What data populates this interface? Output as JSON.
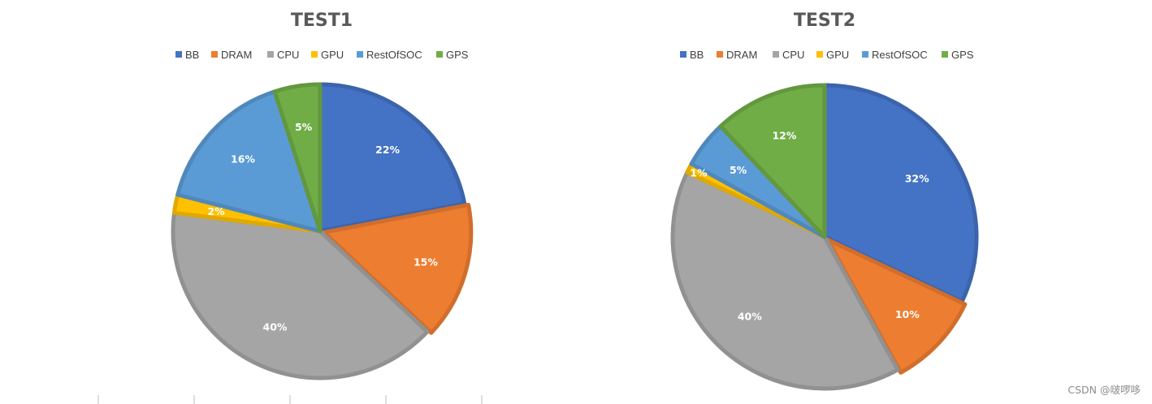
{
  "chart_data": [
    {
      "type": "pie",
      "title": "TEST1",
      "legend_position": "top",
      "series": [
        {
          "name": "BB",
          "value": 22,
          "label": "22%",
          "color": "#4472C4"
        },
        {
          "name": "DRAM",
          "value": 15,
          "label": "15%",
          "color": "#ED7D31"
        },
        {
          "name": "CPU",
          "value": 40,
          "label": "40%",
          "color": "#A5A5A5"
        },
        {
          "name": "GPU",
          "value": 2,
          "label": "2%",
          "color": "#FFC000"
        },
        {
          "name": "RestOfSOC",
          "value": 16,
          "label": "16%",
          "color": "#5B9BD5"
        },
        {
          "name": "GPS",
          "value": 5,
          "label": "5%",
          "color": "#70AD47"
        }
      ]
    },
    {
      "type": "pie",
      "title": "TEST2",
      "legend_position": "top",
      "series": [
        {
          "name": "BB",
          "value": 32,
          "label": "32%",
          "color": "#4472C4"
        },
        {
          "name": "DRAM",
          "value": 10,
          "label": "10%",
          "color": "#ED7D31"
        },
        {
          "name": "CPU",
          "value": 40,
          "label": "40%",
          "color": "#A5A5A5"
        },
        {
          "name": "GPU",
          "value": 1,
          "label": "1%",
          "color": "#FFC000"
        },
        {
          "name": "RestOfSOC",
          "value": 5,
          "label": "5%",
          "color": "#5B9BD5"
        },
        {
          "name": "GPS",
          "value": 12,
          "label": "12%",
          "color": "#70AD47"
        }
      ]
    }
  ],
  "legend_labels": {
    "bb": "BB",
    "dram": "DRAM",
    "cpu": "CPU",
    "gpu": "GPU",
    "restofsoc": "RestOfSOC",
    "gps": "GPS"
  },
  "watermark": "CSDN @啵啰哆"
}
